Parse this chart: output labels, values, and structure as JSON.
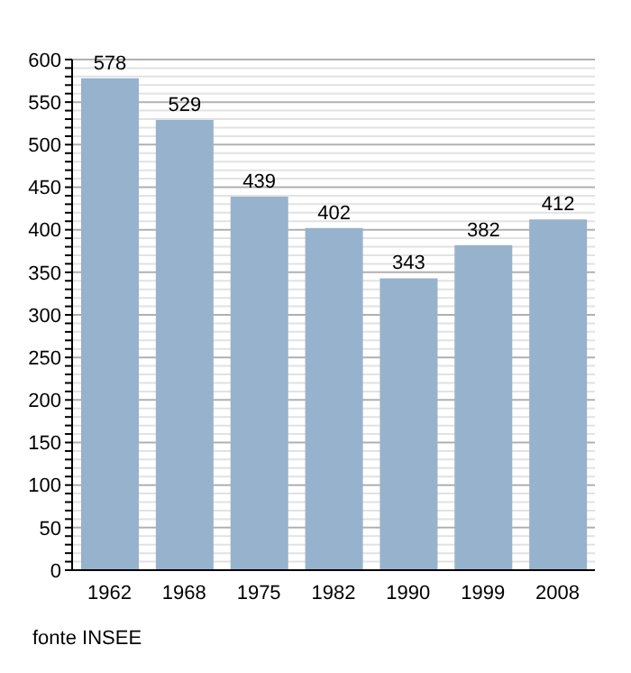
{
  "chart_data": {
    "type": "bar",
    "categories": [
      "1962",
      "1968",
      "1975",
      "1982",
      "1990",
      "1999",
      "2008"
    ],
    "values": [
      578,
      529,
      439,
      402,
      343,
      382,
      412
    ],
    "color": "#97b2cc",
    "data_labels": true,
    "grid": "y",
    "ylim": [
      0,
      600
    ],
    "yticks": [
      0,
      {
        "value": 10,
        "label": null
      },
      {
        "value": 20,
        "label": null
      },
      {
        "value": 30,
        "label": null
      },
      {
        "value": 40,
        "label": null
      },
      50,
      {
        "value": 60,
        "label": null
      },
      {
        "value": 70,
        "label": null
      },
      {
        "value": 80,
        "label": null
      },
      {
        "value": 90,
        "label": null
      },
      100,
      {
        "value": 110,
        "label": null
      },
      {
        "value": 120,
        "label": null
      },
      {
        "value": 130,
        "label": null
      },
      {
        "value": 140,
        "label": null
      },
      150,
      {
        "value": 160,
        "label": null
      },
      {
        "value": 170,
        "label": null
      },
      {
        "value": 180,
        "label": null
      },
      {
        "value": 190,
        "label": null
      },
      200,
      {
        "value": 210,
        "label": null
      },
      {
        "value": 220,
        "label": null
      },
      {
        "value": 230,
        "label": null
      },
      {
        "value": 240,
        "label": null
      },
      250,
      {
        "value": 260,
        "label": null
      },
      {
        "value": 270,
        "label": null
      },
      {
        "value": 280,
        "label": null
      },
      {
        "value": 290,
        "label": null
      },
      300,
      {
        "value": 310,
        "label": null
      },
      {
        "value": 320,
        "label": null
      },
      {
        "value": 330,
        "label": null
      },
      {
        "value": 340,
        "label": null
      },
      350,
      {
        "value": 360,
        "label": null
      },
      {
        "value": 370,
        "label": null
      },
      {
        "value": 380,
        "label": null
      },
      {
        "value": 390,
        "label": null
      },
      400,
      {
        "value": 410,
        "label": null
      },
      {
        "value": 420,
        "label": null
      },
      {
        "value": 430,
        "label": null
      },
      {
        "value": 440,
        "label": null
      },
      450,
      {
        "value": 460,
        "label": null
      },
      {
        "value": 470,
        "label": null
      },
      {
        "value": 480,
        "label": null
      },
      {
        "value": 490,
        "label": null
      },
      500,
      {
        "value": 510,
        "label": null
      },
      {
        "value": 520,
        "label": null
      },
      {
        "value": 530,
        "label": null
      },
      {
        "value": 540,
        "label": null
      },
      550,
      {
        "value": 560,
        "label": null
      },
      {
        "value": 570,
        "label": null
      },
      {
        "value": 580,
        "label": null
      },
      {
        "value": 590,
        "label": null
      },
      600
    ],
    "annotations": [
      "fonte INSEE"
    ]
  }
}
